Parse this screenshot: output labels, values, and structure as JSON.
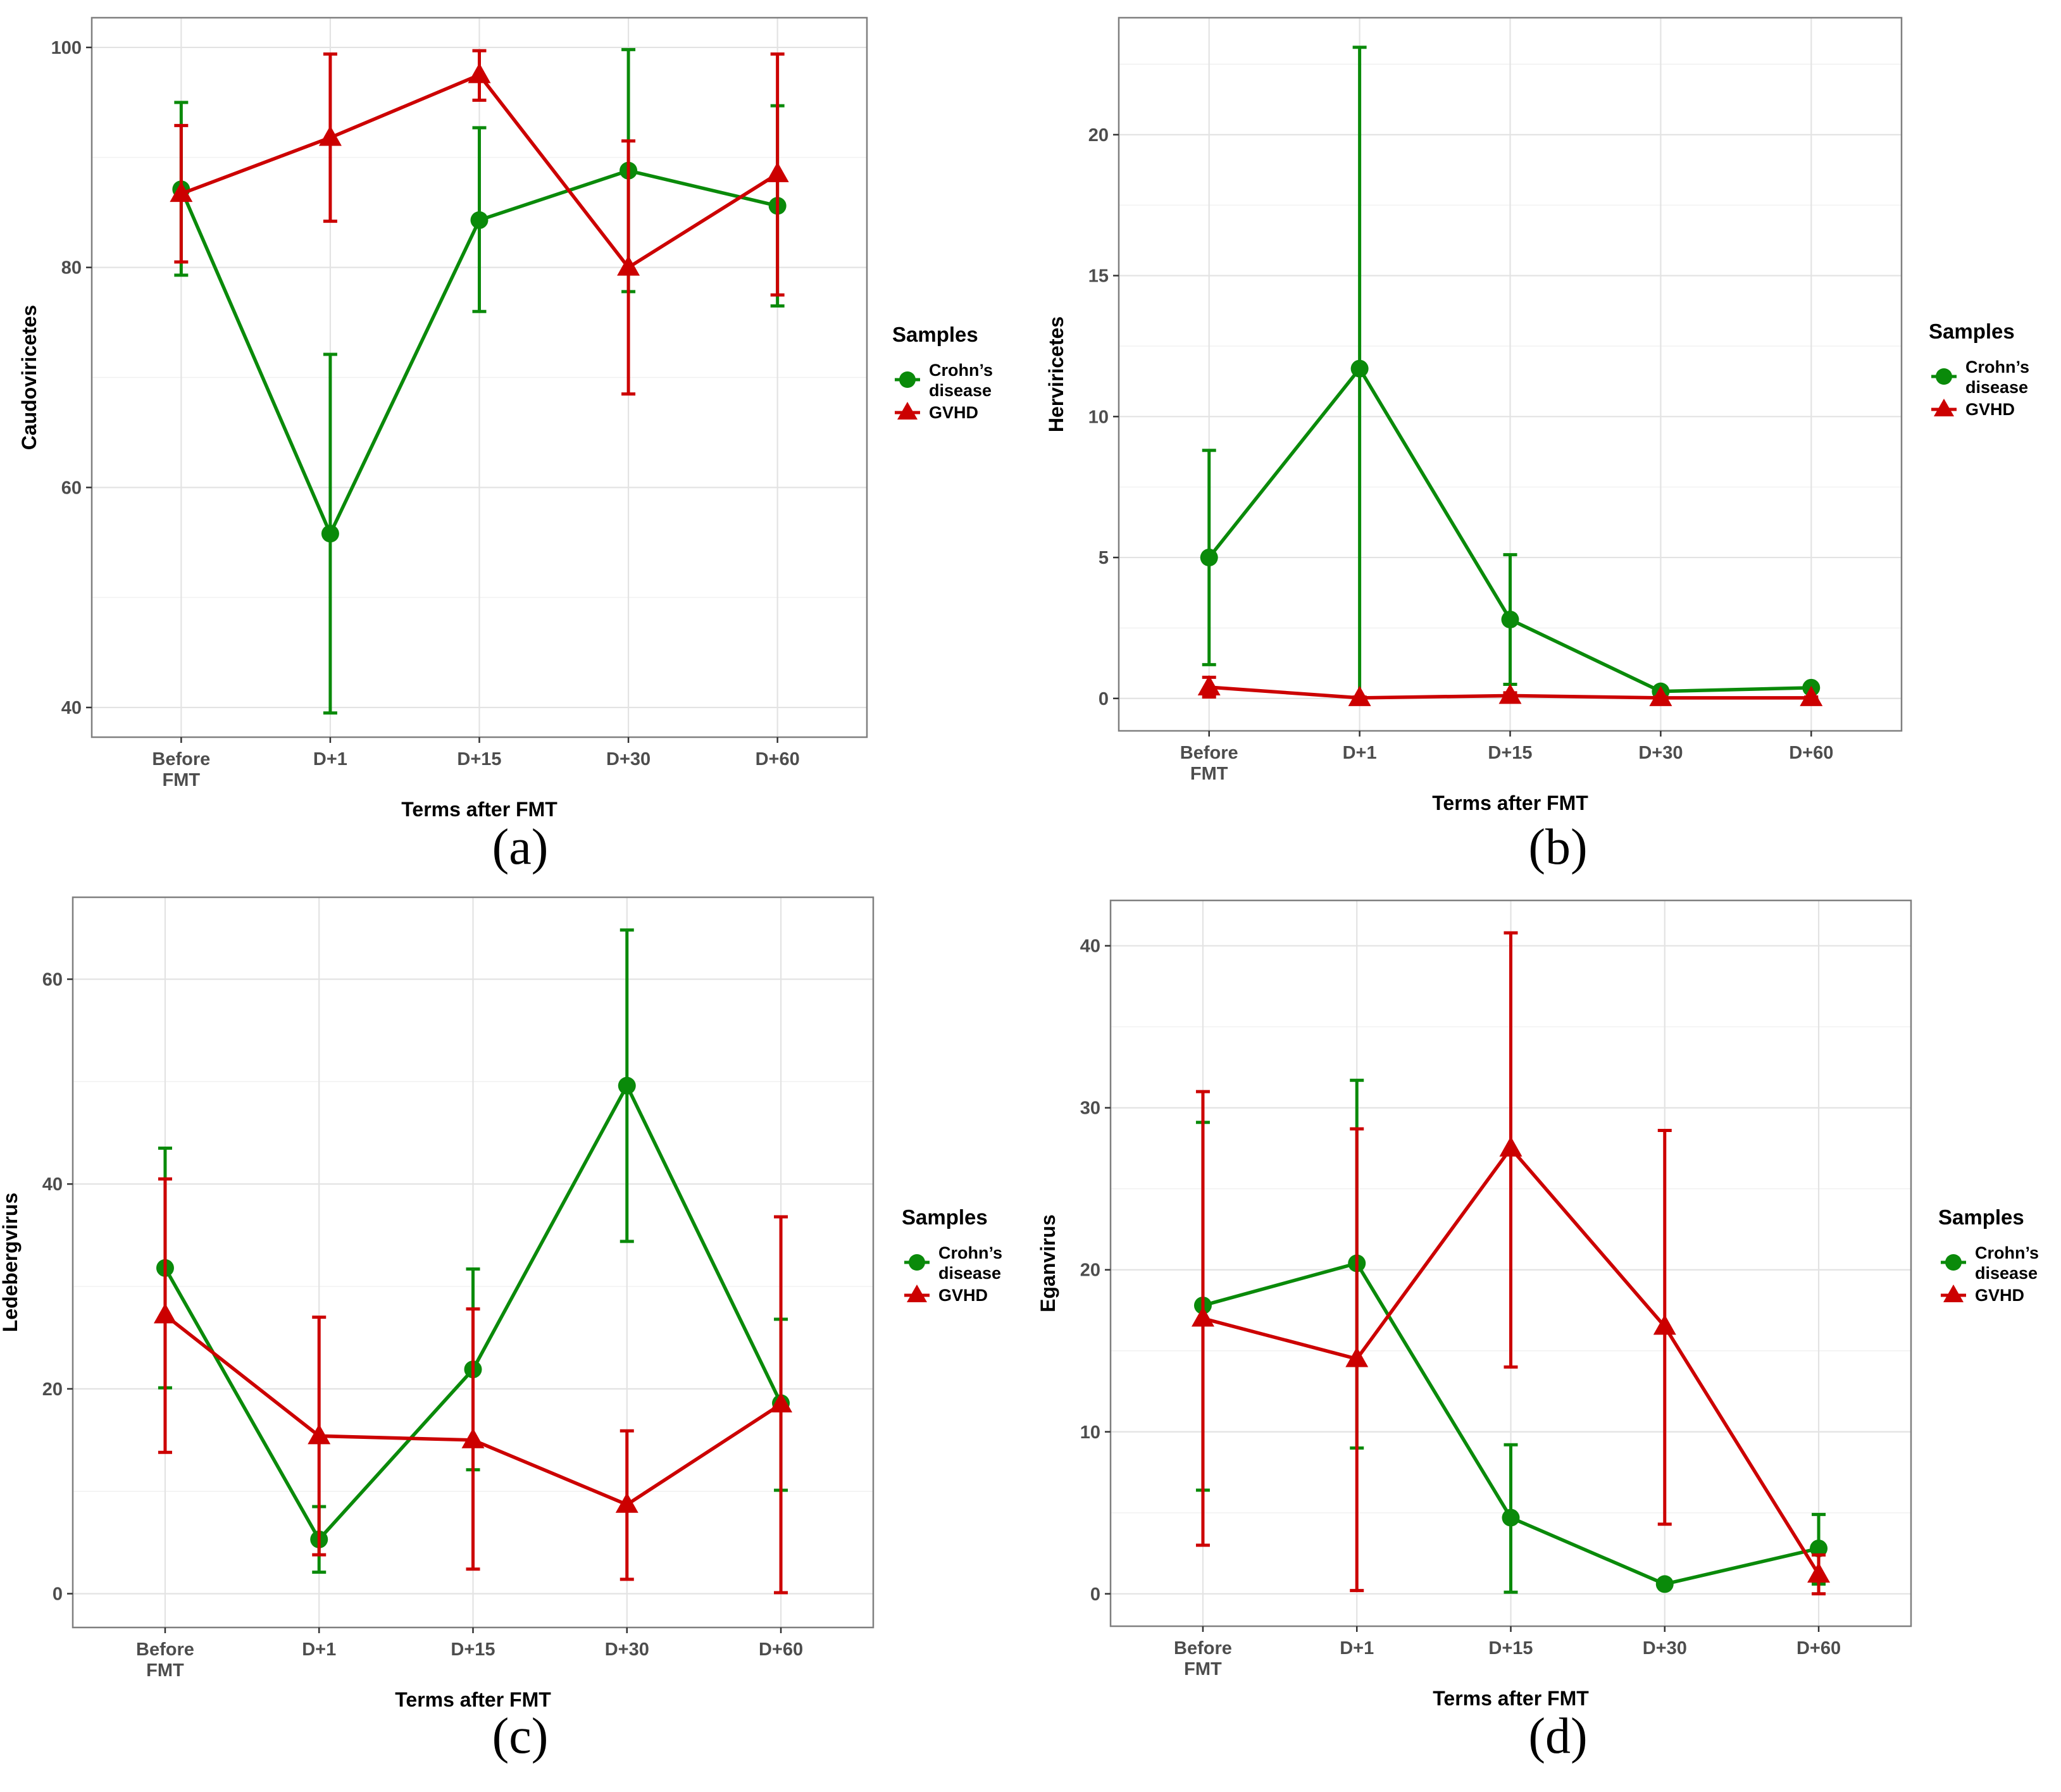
{
  "legend": {
    "title": "Samples",
    "items": [
      {
        "label_lines": [
          "Crohn’s",
          "disease"
        ],
        "color": "#0a8a0a",
        "shape": "circle"
      },
      {
        "label_lines": [
          "GVHD"
        ],
        "color": "#cc0000",
        "shape": "triangle"
      }
    ]
  },
  "chart_data": [
    {
      "type": "line",
      "panel_label": "(a)",
      "xlabel": "Terms after FMT",
      "ylabel": "Caudoviricetes",
      "categories": [
        [
          "Before",
          "FMT"
        ],
        [
          "D+1"
        ],
        [
          "D+15"
        ],
        [
          "D+30"
        ],
        [
          "D+60"
        ]
      ],
      "ylim": [
        37.3,
        102.7
      ],
      "yticks": [
        40,
        60,
        80,
        100
      ],
      "grid": true,
      "legend_position": "right",
      "series": [
        {
          "name": "Crohn’s disease",
          "color": "#0a8a0a",
          "marker": "circle",
          "values": [
            87.1,
            55.8,
            84.3,
            88.8,
            85.6
          ],
          "err_low": [
            79.3,
            39.5,
            76.0,
            77.8,
            76.5
          ],
          "err_high": [
            95.0,
            72.1,
            92.7,
            99.8,
            94.7
          ]
        },
        {
          "name": "GVHD",
          "color": "#cc0000",
          "marker": "triangle",
          "values": [
            86.7,
            91.8,
            97.5,
            80.0,
            88.5
          ],
          "err_low": [
            80.5,
            84.2,
            95.2,
            68.5,
            77.5
          ],
          "err_high": [
            92.9,
            99.4,
            99.7,
            91.5,
            99.4
          ]
        }
      ]
    },
    {
      "type": "line",
      "panel_label": "(b)",
      "xlabel": "Terms after FMT",
      "ylabel": "Herviricetes",
      "categories": [
        [
          "Before",
          "FMT"
        ],
        [
          "D+1"
        ],
        [
          "D+15"
        ],
        [
          "D+30"
        ],
        [
          "D+60"
        ]
      ],
      "ylim": [
        -1.15,
        24.15
      ],
      "yticks": [
        0,
        5,
        10,
        15,
        20
      ],
      "grid": true,
      "legend_position": "right",
      "series": [
        {
          "name": "Crohn’s disease",
          "color": "#0a8a0a",
          "marker": "circle",
          "values": [
            5.0,
            11.7,
            2.8,
            0.25,
            0.38
          ],
          "err_low": [
            1.2,
            0.0,
            0.5,
            0.2,
            0.3
          ],
          "err_high": [
            8.8,
            23.1,
            5.1,
            0.3,
            0.46
          ]
        },
        {
          "name": "GVHD",
          "color": "#cc0000",
          "marker": "triangle",
          "values": [
            0.4,
            0.02,
            0.1,
            0.02,
            0.02
          ],
          "err_low": [
            0.05,
            0.0,
            0.0,
            0.0,
            0.0
          ],
          "err_high": [
            0.75,
            0.05,
            0.2,
            0.05,
            0.05
          ]
        }
      ]
    },
    {
      "type": "line",
      "panel_label": "(c)",
      "xlabel": "Terms after FMT",
      "ylabel": "Ledebergvirus",
      "categories": [
        [
          "Before",
          "FMT"
        ],
        [
          "D+1"
        ],
        [
          "D+15"
        ],
        [
          "D+30"
        ],
        [
          "D+60"
        ]
      ],
      "ylim": [
        -3.3,
        68.0
      ],
      "yticks": [
        0,
        20,
        40,
        60
      ],
      "grid": true,
      "legend_position": "right",
      "series": [
        {
          "name": "Crohn’s disease",
          "color": "#0a8a0a",
          "marker": "circle",
          "values": [
            31.8,
            5.3,
            21.9,
            49.6,
            18.6
          ],
          "err_low": [
            20.1,
            2.1,
            12.1,
            34.4,
            10.1
          ],
          "err_high": [
            43.5,
            8.5,
            31.7,
            64.8,
            26.8
          ]
        },
        {
          "name": "GVHD",
          "color": "#cc0000",
          "marker": "triangle",
          "values": [
            27.2,
            15.4,
            15.0,
            8.7,
            18.5
          ],
          "err_low": [
            13.8,
            3.8,
            2.4,
            1.4,
            0.1
          ],
          "err_high": [
            40.5,
            27.0,
            27.8,
            15.9,
            36.8
          ]
        }
      ]
    },
    {
      "type": "line",
      "panel_label": "(d)",
      "xlabel": "Terms after FMT",
      "ylabel": "Eganvirus",
      "categories": [
        [
          "Before",
          "FMT"
        ],
        [
          "D+1"
        ],
        [
          "D+15"
        ],
        [
          "D+30"
        ],
        [
          "D+60"
        ]
      ],
      "ylim": [
        -2.0,
        42.8
      ],
      "yticks": [
        0,
        10,
        20,
        30,
        40
      ],
      "grid": true,
      "legend_position": "right",
      "series": [
        {
          "name": "Crohn’s disease",
          "color": "#0a8a0a",
          "marker": "circle",
          "values": [
            17.8,
            20.4,
            4.7,
            0.6,
            2.8
          ],
          "err_low": [
            6.4,
            9.0,
            0.1,
            0.4,
            0.6
          ],
          "err_high": [
            29.1,
            31.7,
            9.2,
            0.8,
            4.9
          ]
        },
        {
          "name": "GVHD",
          "color": "#cc0000",
          "marker": "triangle",
          "values": [
            17.0,
            14.5,
            27.5,
            16.5,
            1.2
          ],
          "err_low": [
            3.0,
            0.2,
            14.0,
            4.3,
            0.0
          ],
          "err_high": [
            31.0,
            28.7,
            40.8,
            28.6,
            2.4
          ]
        }
      ]
    }
  ]
}
